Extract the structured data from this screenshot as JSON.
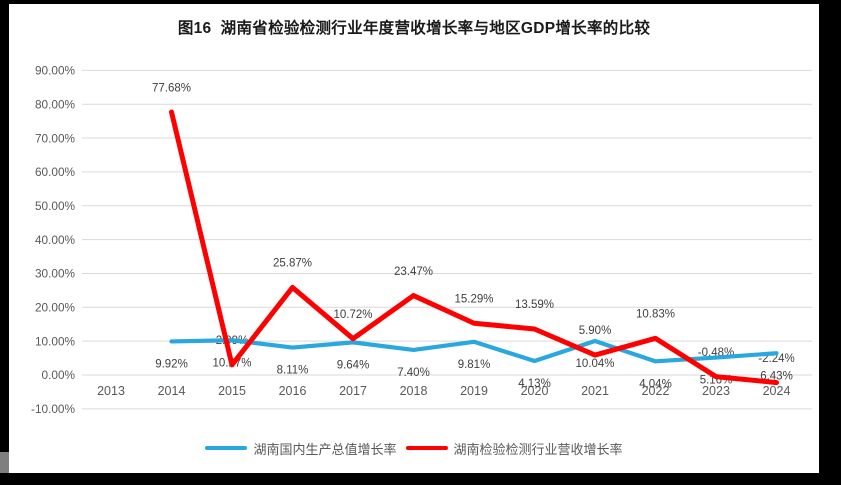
{
  "chart_data": {
    "type": "line",
    "title": "图16  湖南省检验检测行业年度营收增长率与地区GDP增长率的比较",
    "categories": [
      "2013",
      "2014",
      "2015",
      "2016",
      "2017",
      "2018",
      "2019",
      "2020",
      "2021",
      "2022",
      "2023",
      "2024"
    ],
    "y_axis": {
      "min": -10,
      "max": 90,
      "step": 10,
      "ticks": [
        "90.00%",
        "80.00%",
        "70.00%",
        "60.00%",
        "50.00%",
        "40.00%",
        "30.00%",
        "20.00%",
        "10.00%",
        "0.00%",
        "-10.00%"
      ]
    },
    "grid": true,
    "legend_position": "bottom",
    "colors": {
      "gdp_line": "#28A8DF",
      "revenue_line": "#FF0000",
      "gridline": "#D9D9D9",
      "axis_text": "#595959",
      "data_label_text": "#3F3F3F"
    },
    "series": [
      {
        "name": "湖南国内生产总值增长率",
        "color": "#28A8DF",
        "label_position": "below",
        "values": [
          null,
          9.92,
          10.27,
          8.11,
          9.64,
          7.4,
          9.81,
          4.13,
          10.04,
          4.04,
          5.16,
          6.43
        ],
        "labels": [
          null,
          "9.92%",
          "10.27%",
          "8.11%",
          "9.64%",
          "7.40%",
          "9.81%",
          "4.13%",
          "10.04%",
          "4.04%",
          "5.16%",
          "6.43%"
        ]
      },
      {
        "name": "湖南检验检测行业营收增长率",
        "color": "#FF0000",
        "label_position": "above",
        "values": [
          null,
          77.68,
          2.99,
          25.87,
          10.72,
          23.47,
          15.29,
          13.59,
          5.9,
          10.83,
          -0.48,
          -2.24
        ],
        "labels": [
          null,
          "77.68%",
          "2.99%",
          "25.87%",
          "10.72%",
          "23.47%",
          "15.29%",
          "13.59%",
          "5.90%",
          "10.83%",
          "-0.48%",
          "-2.24%"
        ]
      }
    ]
  }
}
